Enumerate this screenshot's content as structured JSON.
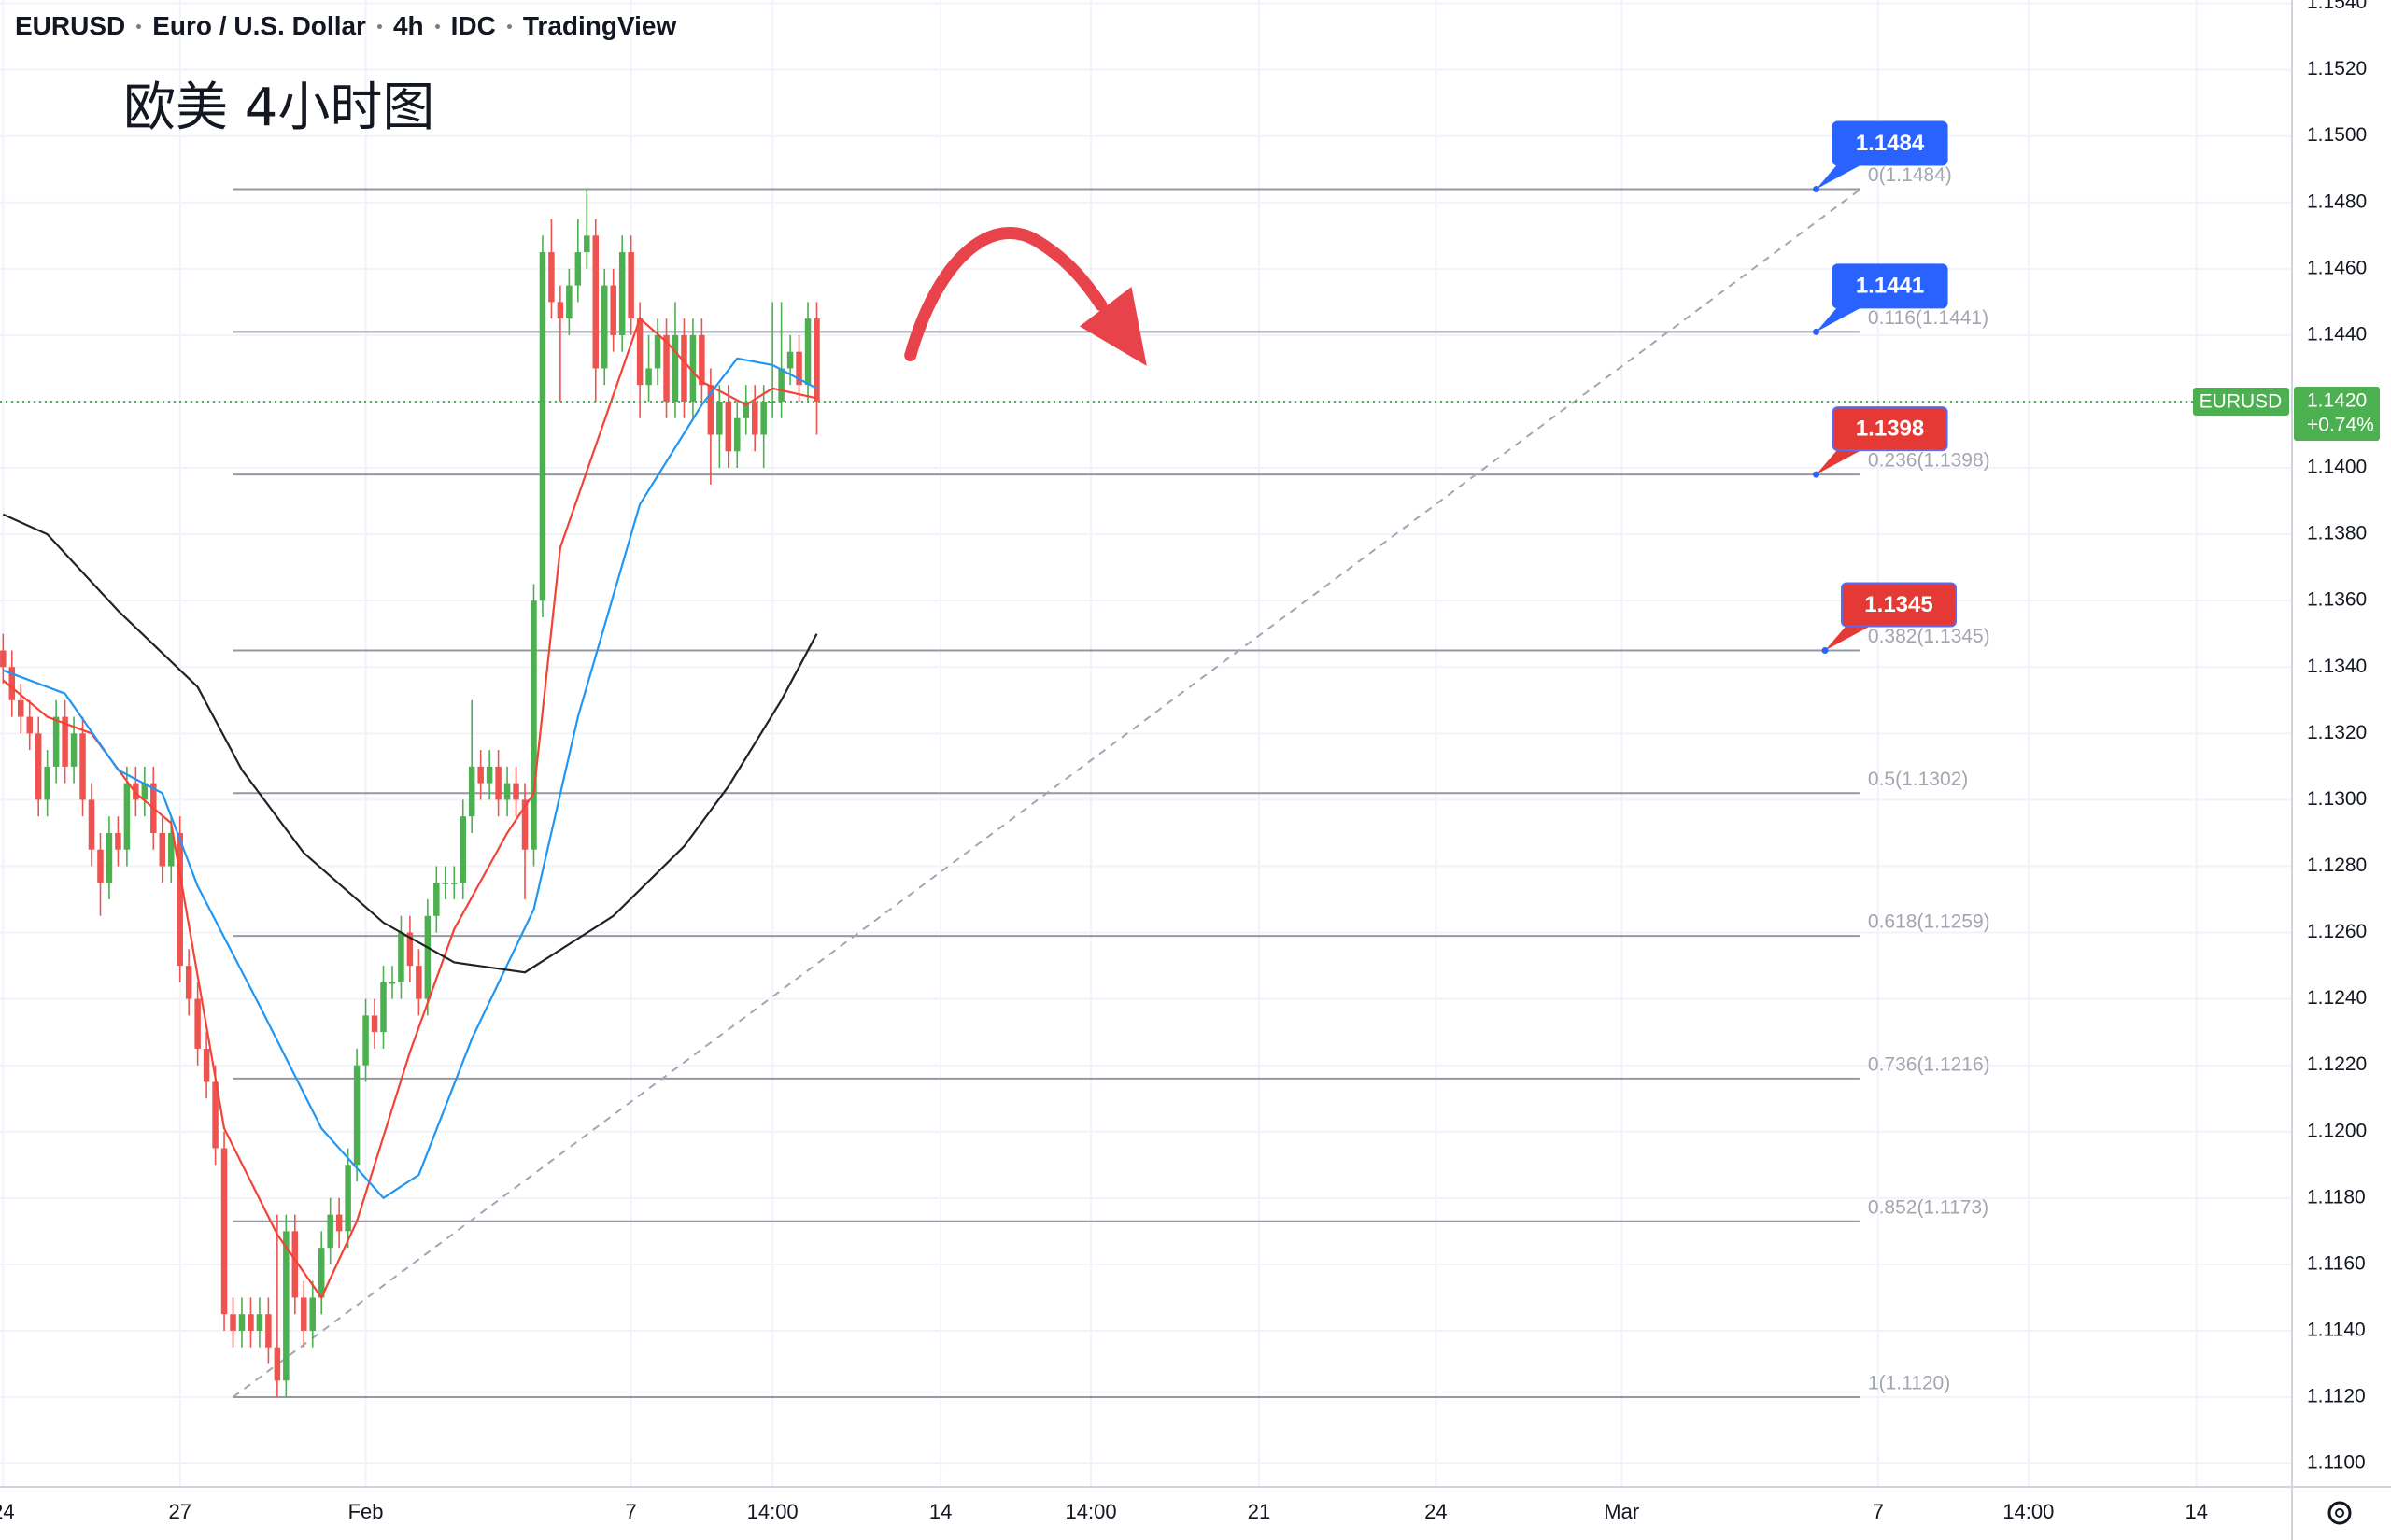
{
  "chart_data": {
    "type": "candlestick",
    "symbol": "EURUSD",
    "description": "Euro / U.S. Dollar",
    "interval": "4h",
    "source": "IDC",
    "platform": "TradingView",
    "annotation": "欧美 4小时图",
    "up_color": "#4caf50",
    "down_color": "#ef5350",
    "xlim": [
      -0.35,
      258.8
    ],
    "ylim": [
      1.1093,
      1.1541
    ],
    "grid": true,
    "xticks": [
      {
        "value": 0,
        "label": "24"
      },
      {
        "value": 20,
        "label": "27"
      },
      {
        "value": 41,
        "label": "Feb"
      },
      {
        "value": 71,
        "label": "7"
      },
      {
        "value": 87,
        "label": "14:00"
      },
      {
        "value": 106,
        "label": "14"
      },
      {
        "value": 123,
        "label": "14:00"
      },
      {
        "value": 142,
        "label": "21"
      },
      {
        "value": 162,
        "label": "24"
      },
      {
        "value": 183,
        "label": "Mar"
      },
      {
        "value": 212,
        "label": "7"
      },
      {
        "value": 229,
        "label": "14:00"
      },
      {
        "value": 248,
        "label": "14"
      }
    ],
    "yticks": [
      {
        "value": 1.11,
        "label": "1.1100"
      },
      {
        "value": 1.112,
        "label": "1.1120"
      },
      {
        "value": 1.114,
        "label": "1.1140"
      },
      {
        "value": 1.116,
        "label": "1.1160"
      },
      {
        "value": 1.118,
        "label": "1.1180"
      },
      {
        "value": 1.12,
        "label": "1.1200"
      },
      {
        "value": 1.122,
        "label": "1.1220"
      },
      {
        "value": 1.124,
        "label": "1.1240"
      },
      {
        "value": 1.126,
        "label": "1.1260"
      },
      {
        "value": 1.128,
        "label": "1.1280"
      },
      {
        "value": 1.13,
        "label": "1.1300"
      },
      {
        "value": 1.132,
        "label": "1.1320"
      },
      {
        "value": 1.134,
        "label": "1.1340"
      },
      {
        "value": 1.136,
        "label": "1.1360"
      },
      {
        "value": 1.138,
        "label": "1.1380"
      },
      {
        "value": 1.14,
        "label": "1.1400"
      },
      {
        "value": 1.142,
        "label": "1.1420"
      },
      {
        "value": 1.144,
        "label": "1.1440"
      },
      {
        "value": 1.146,
        "label": "1.1460"
      },
      {
        "value": 1.148,
        "label": "1.1480"
      },
      {
        "value": 1.15,
        "label": "1.1500"
      },
      {
        "value": 1.152,
        "label": "1.1520"
      },
      {
        "value": 1.154,
        "label": "1.1540"
      }
    ],
    "x": [
      0,
      1,
      2,
      3,
      4,
      5,
      6,
      7,
      8,
      9,
      10,
      11,
      12,
      13,
      14,
      15,
      16,
      17,
      18,
      19,
      20,
      21,
      22,
      23,
      24,
      25,
      26,
      27,
      28,
      29,
      30,
      31,
      32,
      33,
      34,
      35,
      36,
      37,
      38,
      39,
      40,
      41,
      42,
      43,
      44,
      45,
      46,
      47,
      48,
      49,
      50,
      51,
      52,
      53,
      54,
      55,
      56,
      57,
      58,
      59,
      60,
      61,
      62,
      63,
      64,
      65,
      66,
      67,
      68,
      69,
      70,
      71,
      72,
      73,
      74,
      75,
      76,
      77,
      78,
      79,
      80,
      81,
      82,
      83,
      84,
      85,
      86,
      87,
      88,
      89,
      90,
      91,
      92
    ],
    "open": [
      1.1345,
      1.134,
      1.133,
      1.1325,
      1.132,
      1.13,
      1.131,
      1.1325,
      1.131,
      1.132,
      1.13,
      1.1285,
      1.1275,
      1.129,
      1.1285,
      1.1305,
      1.13,
      1.1305,
      1.129,
      1.128,
      1.129,
      1.125,
      1.124,
      1.1225,
      1.1215,
      1.1195,
      1.1145,
      1.114,
      1.1145,
      1.114,
      1.1145,
      1.1135,
      1.1125,
      1.117,
      1.115,
      1.114,
      1.115,
      1.1165,
      1.1175,
      1.117,
      1.119,
      1.122,
      1.1235,
      1.123,
      1.1245,
      1.1245,
      1.126,
      1.125,
      1.124,
      1.1265,
      1.1275,
      1.1275,
      1.1275,
      1.1295,
      1.131,
      1.1305,
      1.131,
      1.13,
      1.1305,
      1.13,
      1.1285,
      1.136,
      1.1465,
      1.145,
      1.1445,
      1.1455,
      1.1465,
      1.147,
      1.143,
      1.1455,
      1.144,
      1.1465,
      1.1445,
      1.1425,
      1.143,
      1.144,
      1.142,
      1.144,
      1.142,
      1.144,
      1.1425,
      1.141,
      1.142,
      1.1405,
      1.1415,
      1.142,
      1.141,
      1.142,
      1.142,
      1.143,
      1.1435,
      1.1425,
      1.1445
    ],
    "high": [
      1.135,
      1.1345,
      1.1335,
      1.133,
      1.1325,
      1.1315,
      1.133,
      1.133,
      1.1325,
      1.1325,
      1.1305,
      1.129,
      1.1295,
      1.1295,
      1.131,
      1.131,
      1.131,
      1.131,
      1.1295,
      1.1295,
      1.1295,
      1.1255,
      1.1245,
      1.123,
      1.122,
      1.12,
      1.115,
      1.115,
      1.115,
      1.115,
      1.115,
      1.1175,
      1.1175,
      1.1175,
      1.1155,
      1.1155,
      1.117,
      1.118,
      1.118,
      1.1195,
      1.1225,
      1.124,
      1.124,
      1.125,
      1.125,
      1.1265,
      1.1265,
      1.1255,
      1.127,
      1.128,
      1.128,
      1.128,
      1.13,
      1.133,
      1.1315,
      1.1315,
      1.1315,
      1.131,
      1.131,
      1.1305,
      1.1365,
      1.147,
      1.1475,
      1.1455,
      1.146,
      1.1475,
      1.1484,
      1.1475,
      1.146,
      1.146,
      1.147,
      1.147,
      1.145,
      1.144,
      1.1445,
      1.1445,
      1.145,
      1.1445,
      1.1445,
      1.1445,
      1.143,
      1.1425,
      1.1425,
      1.142,
      1.1425,
      1.1425,
      1.1425,
      1.145,
      1.145,
      1.144,
      1.144,
      1.145,
      1.145
    ],
    "low": [
      1.1335,
      1.1325,
      1.132,
      1.1315,
      1.1295,
      1.1295,
      1.1305,
      1.1305,
      1.1305,
      1.1295,
      1.128,
      1.1265,
      1.127,
      1.128,
      1.128,
      1.1295,
      1.1295,
      1.1285,
      1.1275,
      1.1275,
      1.1245,
      1.1235,
      1.122,
      1.121,
      1.119,
      1.114,
      1.1135,
      1.1135,
      1.1135,
      1.1135,
      1.113,
      1.112,
      1.112,
      1.1145,
      1.1135,
      1.1135,
      1.1145,
      1.116,
      1.1165,
      1.1165,
      1.1185,
      1.1215,
      1.1225,
      1.1225,
      1.124,
      1.124,
      1.1245,
      1.1235,
      1.1235,
      1.126,
      1.127,
      1.127,
      1.127,
      1.129,
      1.13,
      1.13,
      1.1295,
      1.1295,
      1.1295,
      1.127,
      1.128,
      1.1355,
      1.1445,
      1.142,
      1.144,
      1.145,
      1.146,
      1.142,
      1.1425,
      1.1435,
      1.1435,
      1.144,
      1.1415,
      1.142,
      1.1425,
      1.1415,
      1.1415,
      1.1415,
      1.1415,
      1.142,
      1.1395,
      1.14,
      1.14,
      1.14,
      1.141,
      1.1405,
      1.14,
      1.1415,
      1.1415,
      1.1425,
      1.142,
      1.142,
      1.141
    ],
    "close": [
      1.134,
      1.133,
      1.1325,
      1.132,
      1.13,
      1.131,
      1.1325,
      1.131,
      1.132,
      1.13,
      1.1285,
      1.1275,
      1.129,
      1.1285,
      1.1305,
      1.13,
      1.1305,
      1.129,
      1.128,
      1.129,
      1.125,
      1.124,
      1.1225,
      1.1215,
      1.1195,
      1.1145,
      1.114,
      1.1145,
      1.114,
      1.1145,
      1.1135,
      1.1125,
      1.117,
      1.115,
      1.114,
      1.115,
      1.1165,
      1.1175,
      1.117,
      1.119,
      1.122,
      1.1235,
      1.123,
      1.1245,
      1.1245,
      1.126,
      1.125,
      1.124,
      1.1265,
      1.1275,
      1.1275,
      1.1275,
      1.1295,
      1.131,
      1.1305,
      1.131,
      1.13,
      1.1305,
      1.13,
      1.1285,
      1.136,
      1.1465,
      1.145,
      1.1445,
      1.1455,
      1.1465,
      1.147,
      1.143,
      1.1455,
      1.144,
      1.1465,
      1.1445,
      1.1425,
      1.143,
      1.144,
      1.142,
      1.144,
      1.142,
      1.144,
      1.1425,
      1.141,
      1.142,
      1.1405,
      1.1415,
      1.142,
      1.141,
      1.142,
      1.142,
      1.143,
      1.1435,
      1.1425,
      1.1445,
      1.142
    ],
    "lines": [
      {
        "color": "#f44336",
        "x": [
          0,
          5,
          10,
          15,
          19,
          25,
          31,
          36,
          40,
          46,
          51,
          57,
          60,
          63,
          69,
          72,
          75,
          79,
          84,
          87,
          92
        ],
        "values": [
          1.1336,
          1.1325,
          1.132,
          1.1302,
          1.1293,
          1.1201,
          1.1169,
          1.115,
          1.1173,
          1.1224,
          1.1261,
          1.129,
          1.1302,
          1.1376,
          1.1422,
          1.1445,
          1.1438,
          1.1426,
          1.1419,
          1.1424,
          1.1421
        ]
      },
      {
        "color": "#2196f3",
        "x": [
          0,
          7,
          13,
          18,
          22,
          29,
          36,
          43,
          47,
          53,
          60,
          65,
          72,
          79,
          83,
          87,
          92
        ],
        "values": [
          1.1339,
          1.1332,
          1.1309,
          1.1302,
          1.1274,
          1.1238,
          1.1201,
          1.118,
          1.1187,
          1.1228,
          1.1267,
          1.1325,
          1.1389,
          1.1419,
          1.1433,
          1.1431,
          1.1424
        ]
      },
      {
        "color": "#222222",
        "x": [
          0,
          5,
          13,
          22,
          27,
          34,
          43,
          51,
          59,
          69,
          77,
          82,
          88,
          92
        ],
        "values": [
          1.1386,
          1.138,
          1.1357,
          1.1334,
          1.1309,
          1.1284,
          1.1263,
          1.1251,
          1.1248,
          1.1265,
          1.1286,
          1.1304,
          1.133,
          1.135
        ]
      }
    ],
    "fib_x": [
      26,
      210
    ],
    "fib_levels": [
      {
        "label": "0(1.1484)",
        "value": 1.1484
      },
      {
        "label": "0.116(1.1441)",
        "value": 1.1441
      },
      {
        "label": "0.236(1.1398)",
        "value": 1.1398
      },
      {
        "label": "0.382(1.1345)",
        "value": 1.1345
      },
      {
        "label": "0.5(1.1302)",
        "value": 1.1302
      },
      {
        "label": "0.618(1.1259)",
        "value": 1.1259
      },
      {
        "label": "0.736(1.1216)",
        "value": 1.1216
      },
      {
        "label": "0.852(1.1173)",
        "value": 1.1173
      },
      {
        "label": "1(1.1120)",
        "value": 1.112
      }
    ],
    "trendline": {
      "x": [
        26,
        210
      ],
      "values": [
        1.112,
        1.1484
      ]
    },
    "callouts": [
      {
        "value": 1.1484,
        "x": 205,
        "color": "#2962ff"
      },
      {
        "value": 1.1441,
        "x": 205,
        "color": "#2962ff"
      },
      {
        "value": 1.1398,
        "x": 205,
        "color": "#e53935"
      },
      {
        "value": 1.1345,
        "x": 206,
        "color": "#e53935"
      }
    ],
    "last_price": {
      "value": 1.142,
      "label": "1.1420"
    },
    "change": "+0.74%"
  }
}
